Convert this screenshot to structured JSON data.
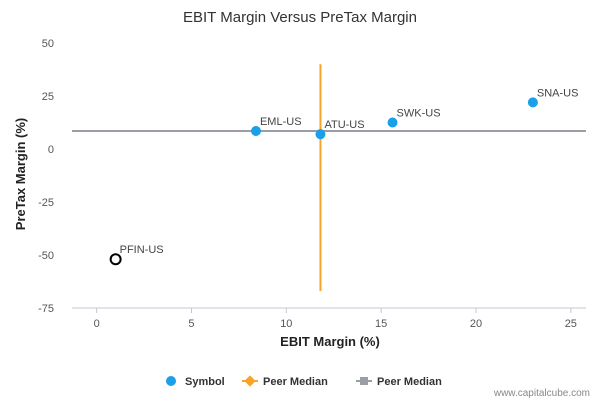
{
  "chart_data": {
    "type": "scatter",
    "title": "EBIT Margin Versus PreTax Margin",
    "xlabel": "EBIT Margin (%)",
    "ylabel": "PreTax Margin (%)",
    "xlim": [
      -1.3,
      25.8
    ],
    "ylim": [
      -75,
      50
    ],
    "xticks": [
      0,
      5,
      10,
      15,
      20,
      25
    ],
    "yticks": [
      50,
      25,
      0,
      -25,
      -50,
      -75
    ],
    "grid": false,
    "points": [
      {
        "label": "EML-US",
        "x": 8.4,
        "y": 8.5,
        "style": "filled"
      },
      {
        "label": "ATU-US",
        "x": 11.8,
        "y": 7.0,
        "style": "filled"
      },
      {
        "label": "SWK-US",
        "x": 15.6,
        "y": 12.5,
        "style": "filled"
      },
      {
        "label": "SNA-US",
        "x": 23.0,
        "y": 22.0,
        "style": "filled"
      },
      {
        "label": "PFIN-US",
        "x": 1.0,
        "y": -52.0,
        "style": "hollow"
      }
    ],
    "peer_median_x": 11.8,
    "peer_median_x_span": [
      -67,
      40
    ],
    "peer_median_y": 8.5,
    "legend": {
      "placement": "bottom",
      "items": [
        {
          "label": "Symbol",
          "type": "symbol"
        },
        {
          "label": "Peer Median",
          "type": "vline"
        },
        {
          "label": "Peer Median",
          "type": "hline"
        }
      ]
    },
    "colors": {
      "symbol": "#1a9fe8",
      "vline": "#f7a428",
      "hline": "#9a9ea6",
      "axis": "#c0c8d4"
    }
  },
  "credit": "www.capitalcube.com"
}
